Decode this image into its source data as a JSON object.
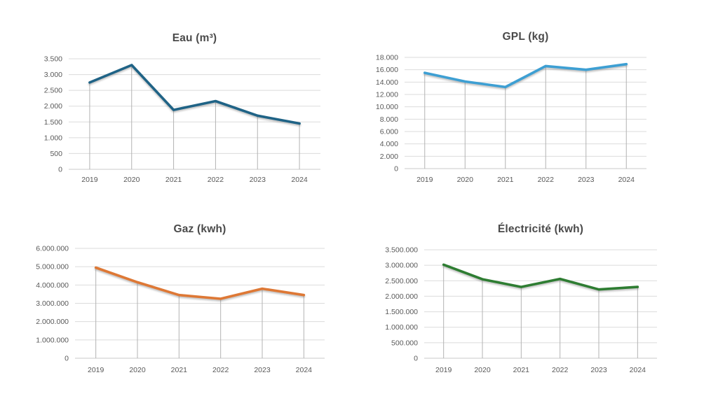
{
  "page": {
    "background": "#ffffff"
  },
  "colors": {
    "gridline": "#dbdbdb",
    "zero_axis": "#c8c8c8",
    "drop_line": "#b3b3b3",
    "tick_text": "#595959",
    "title_text": "#4a4a4a"
  },
  "chart_data": [
    {
      "type": "line",
      "title": "Eau (m³)",
      "categories": [
        "2019",
        "2020",
        "2021",
        "2022",
        "2023",
        "2024"
      ],
      "values": [
        2750,
        3300,
        1880,
        2160,
        1700,
        1450
      ],
      "ylim": [
        0,
        3500
      ],
      "ytick_labels": [
        "0",
        "500",
        "1.000",
        "1.500",
        "2.000",
        "2.500",
        "3.000",
        "3.500"
      ],
      "xlabel": "",
      "ylabel": "",
      "grid": "horizontal",
      "legend": "none",
      "drop_lines": true,
      "line_color": "#1f6386"
    },
    {
      "type": "line",
      "title": "GPL (kg)",
      "categories": [
        "2019",
        "2020",
        "2021",
        "2022",
        "2023",
        "2024"
      ],
      "values": [
        15500,
        14100,
        13200,
        16600,
        16000,
        16900
      ],
      "ylim": [
        0,
        18000
      ],
      "ytick_labels": [
        "0",
        "2.000",
        "4.000",
        "6.000",
        "8.000",
        "10.000",
        "12.000",
        "14.000",
        "16.000",
        "18.000"
      ],
      "xlabel": "",
      "ylabel": "",
      "grid": "horizontal",
      "legend": "none",
      "drop_lines": true,
      "line_color": "#3d9fd3"
    },
    {
      "type": "line",
      "title": "Gaz (kwh)",
      "categories": [
        "2019",
        "2020",
        "2021",
        "2022",
        "2023",
        "2024"
      ],
      "values": [
        4950000,
        4150000,
        3450000,
        3250000,
        3800000,
        3450000
      ],
      "ylim": [
        0,
        6000000
      ],
      "ytick_labels": [
        "0",
        "1.000.000",
        "2.000.000",
        "3.000.000",
        "4.000.000",
        "5.000.000",
        "6.000.000"
      ],
      "xlabel": "",
      "ylabel": "",
      "grid": "horizontal",
      "legend": "none",
      "drop_lines": true,
      "line_color": "#de7835"
    },
    {
      "type": "line",
      "title": "Électricité (kwh)",
      "categories": [
        "2019",
        "2020",
        "2021",
        "2022",
        "2023",
        "2024"
      ],
      "values": [
        3020000,
        2550000,
        2300000,
        2560000,
        2220000,
        2300000
      ],
      "ylim": [
        0,
        3500000
      ],
      "ytick_labels": [
        "0",
        "500.000",
        "1.000.000",
        "1.500.000",
        "2.000.000",
        "2.500.000",
        "3.000.000",
        "3.500.000"
      ],
      "xlabel": "",
      "ylabel": "",
      "grid": "horizontal",
      "legend": "none",
      "drop_lines": true,
      "line_color": "#2e7d32"
    }
  ]
}
